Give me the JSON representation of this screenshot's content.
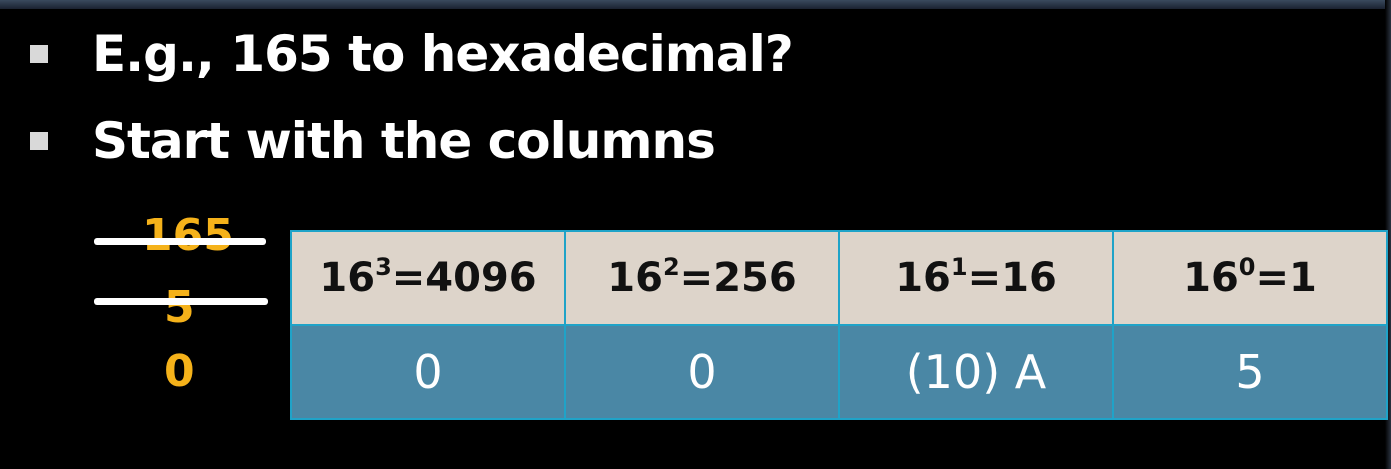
{
  "slide": {
    "bullets": [
      "E.g., 165 to hexadecimal?",
      "Start with the columns"
    ]
  },
  "working": {
    "values": [
      "165",
      "5",
      "0"
    ]
  },
  "table": {
    "headers": [
      {
        "base": "16",
        "exp": "3",
        "eq": "=4096"
      },
      {
        "base": "16",
        "exp": "2",
        "eq": "=256"
      },
      {
        "base": "16",
        "exp": "1",
        "eq": "=16"
      },
      {
        "base": "16",
        "exp": "0",
        "eq": "=1"
      }
    ],
    "digits": [
      "0",
      "0",
      "(10) A",
      "5"
    ]
  },
  "colors": {
    "background": "#000000",
    "accent": "#f5b21a",
    "header_cell": "#ddd4ca",
    "value_cell": "#4a87a5",
    "border": "#1fa3c8"
  }
}
